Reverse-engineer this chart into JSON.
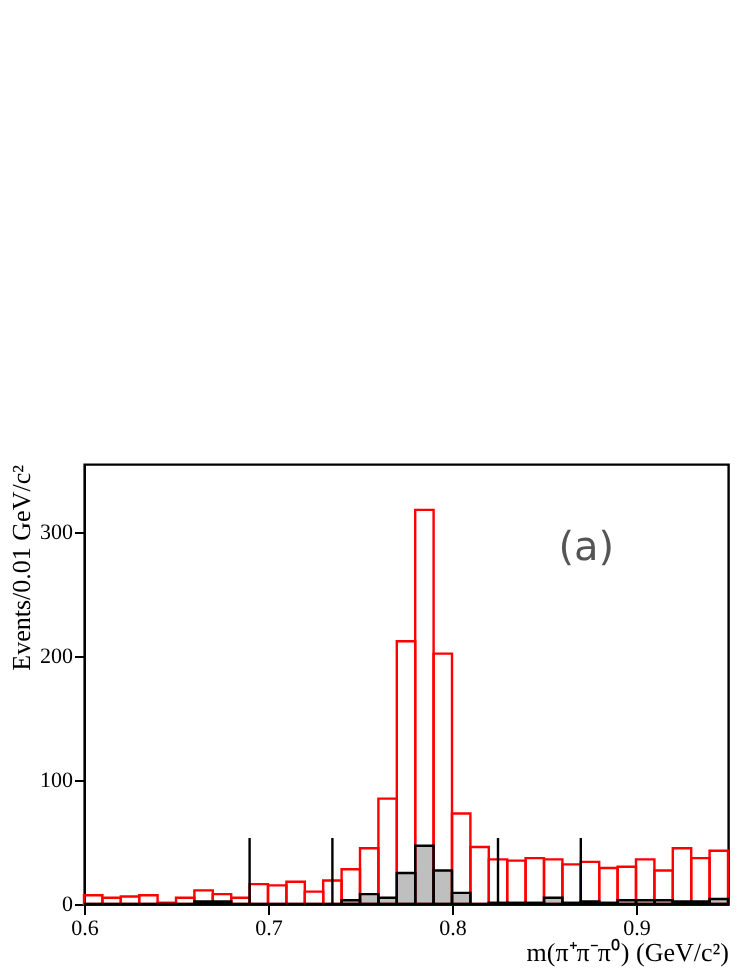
{
  "chart_data": {
    "type": "histogram",
    "xlabel": "m(π⁺π⁻π⁰) (GeV/c²)",
    "ylabel": "Events/0.01 GeV/c²",
    "annotations": [
      "(a)"
    ],
    "bins": [
      0.6,
      0.61,
      0.62,
      0.63,
      0.64,
      0.65,
      0.66,
      0.67,
      0.68,
      0.69,
      0.7,
      0.71,
      0.72,
      0.73,
      0.74,
      0.75,
      0.76,
      0.77,
      0.78,
      0.79,
      0.8,
      0.81,
      0.82,
      0.83,
      0.84,
      0.85,
      0.86,
      0.87,
      0.88,
      0.89,
      0.9,
      0.91,
      0.92,
      0.93,
      0.94,
      0.95
    ],
    "series": [
      {
        "color": "#ff0000",
        "values": [
          7,
          5,
          6,
          7,
          1,
          5,
          11,
          8,
          5,
          16,
          15,
          18,
          10,
          19,
          28,
          45,
          85,
          212,
          318,
          202,
          73,
          46,
          36,
          35,
          37,
          36,
          32,
          34,
          29,
          30,
          36,
          27,
          45,
          37,
          43
        ]
      },
      {
        "color": "#000000",
        "values": [
          0,
          0,
          0,
          0,
          0,
          0,
          2,
          2,
          0,
          0,
          0,
          0,
          0,
          0,
          3,
          8,
          5,
          25,
          47,
          27,
          9,
          0,
          1,
          1,
          1,
          5,
          1,
          2,
          1,
          3,
          3,
          3,
          2,
          2,
          4
        ]
      }
    ],
    "ref_lines": [
      {
        "axis": "x",
        "value": 0.69,
        "color": "#000000"
      },
      {
        "axis": "x",
        "value": 0.735,
        "color": "#000000"
      },
      {
        "axis": "x",
        "value": 0.825,
        "color": "#000000"
      },
      {
        "axis": "x",
        "value": 0.87,
        "color": "#000000"
      }
    ],
    "xlim": [
      0.6,
      0.95
    ],
    "xticks": [
      0.6,
      0.7,
      0.8,
      0.9
    ],
    "ylim": [
      0,
      355
    ],
    "yticks": [
      0,
      100,
      200,
      300
    ]
  }
}
